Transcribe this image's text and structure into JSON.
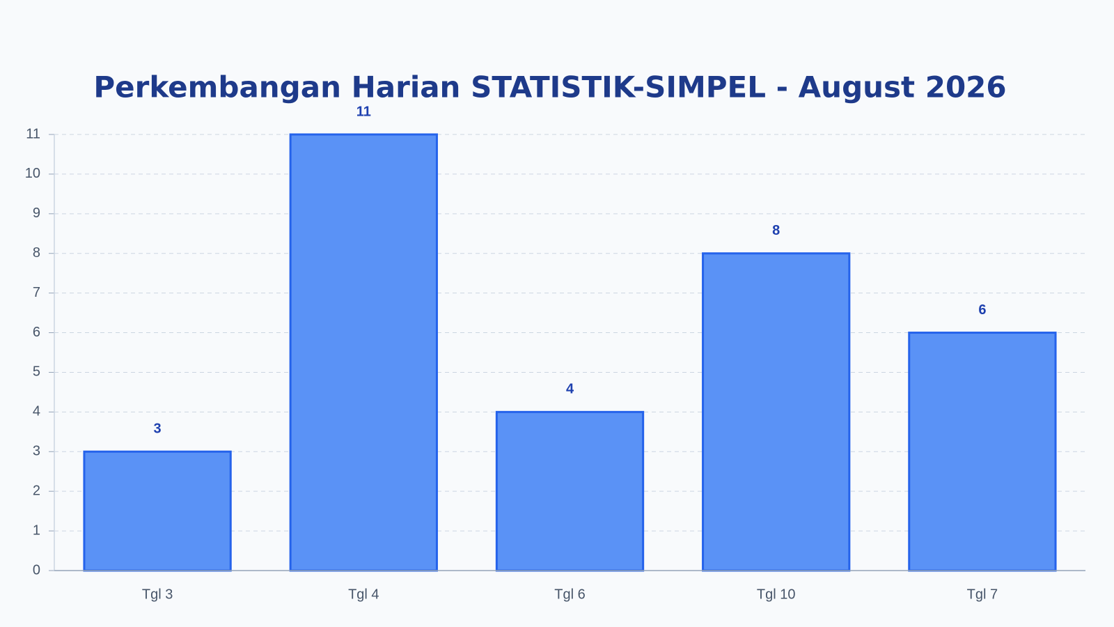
{
  "chart_data": {
    "type": "bar",
    "title": "Perkembangan Harian STATISTIK-SIMPEL - August 2026",
    "categories": [
      "Tgl 3",
      "Tgl 4",
      "Tgl 6",
      "Tgl 10",
      "Tgl 7"
    ],
    "values": [
      3,
      11,
      4,
      8,
      6
    ],
    "color": "#5a92f6",
    "edge_color": "#2563eb",
    "ylim": [
      0,
      11
    ],
    "yticks": [
      0,
      1,
      2,
      3,
      4,
      5,
      6,
      7,
      8,
      9,
      10,
      11
    ],
    "grid": true
  }
}
